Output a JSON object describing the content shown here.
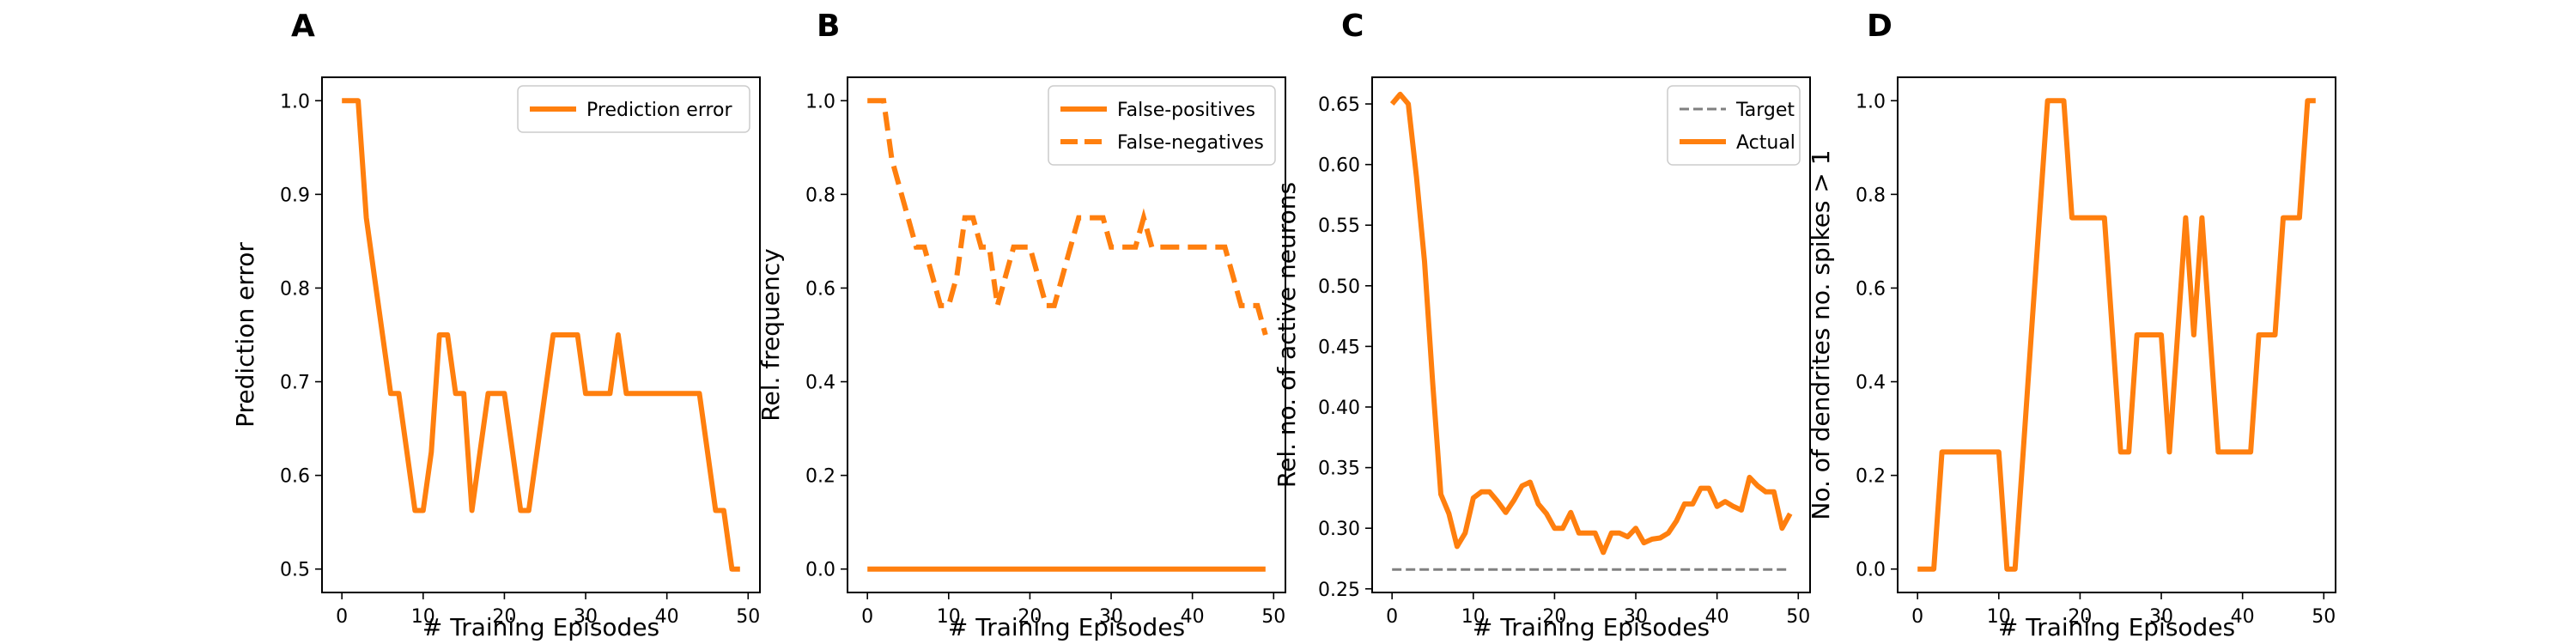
{
  "chart_data": [
    {
      "panel_label": "A",
      "type": "line",
      "xlabel": "# Training Episodes",
      "ylabel": "Prediction error",
      "xlim": [
        -2.45,
        51.45
      ],
      "ylim": [
        0.475,
        1.025
      ],
      "xticks": [
        0,
        10,
        20,
        30,
        40,
        50
      ],
      "xtick_labels": [
        "0",
        "10",
        "20",
        "30",
        "40",
        "50"
      ],
      "yticks": [
        0.5,
        0.6,
        0.7,
        0.8,
        0.9,
        1.0
      ],
      "ytick_labels": [
        "0.5",
        "0.6",
        "0.7",
        "0.8",
        "0.9",
        "1.0"
      ],
      "legend": "top-right",
      "series": [
        {
          "name": "Prediction error",
          "style": "solid",
          "color": "#ff7f0e",
          "x": [
            0,
            1,
            2,
            3,
            4,
            5,
            6,
            7,
            8,
            9,
            10,
            11,
            12,
            13,
            14,
            15,
            16,
            17,
            18,
            19,
            20,
            21,
            22,
            23,
            24,
            25,
            26,
            27,
            28,
            29,
            30,
            31,
            32,
            33,
            34,
            35,
            36,
            37,
            38,
            39,
            40,
            41,
            42,
            43,
            44,
            45,
            46,
            47,
            48,
            49
          ],
          "y": [
            1.0,
            1.0,
            1.0,
            0.875,
            0.8125,
            0.75,
            0.6875,
            0.6875,
            0.625,
            0.5625,
            0.5625,
            0.625,
            0.75,
            0.75,
            0.6875,
            0.6875,
            0.5625,
            0.625,
            0.6875,
            0.6875,
            0.6875,
            0.625,
            0.5625,
            0.5625,
            0.625,
            0.6875,
            0.75,
            0.75,
            0.75,
            0.75,
            0.6875,
            0.6875,
            0.6875,
            0.6875,
            0.75,
            0.6875,
            0.6875,
            0.6875,
            0.6875,
            0.6875,
            0.6875,
            0.6875,
            0.6875,
            0.6875,
            0.6875,
            0.625,
            0.5625,
            0.5625,
            0.5,
            0.5
          ]
        }
      ]
    },
    {
      "panel_label": "B",
      "type": "line",
      "xlabel": "# Training Episodes",
      "ylabel": "Rel. frequency",
      "xlim": [
        -2.45,
        51.45
      ],
      "ylim": [
        -0.05,
        1.05
      ],
      "xticks": [
        0,
        10,
        20,
        30,
        40,
        50
      ],
      "xtick_labels": [
        "0",
        "10",
        "20",
        "30",
        "40",
        "50"
      ],
      "yticks": [
        0.0,
        0.2,
        0.4,
        0.6,
        0.8,
        1.0
      ],
      "ytick_labels": [
        "0.0",
        "0.2",
        "0.4",
        "0.6",
        "0.8",
        "1.0"
      ],
      "legend": "top-right",
      "series": [
        {
          "name": "False-positives",
          "style": "solid",
          "color": "#ff7f0e",
          "x": [
            0,
            49
          ],
          "y": [
            0.0,
            0.0
          ]
        },
        {
          "name": "False-negatives",
          "style": "dashed",
          "color": "#ff7f0e",
          "x": [
            0,
            1,
            2,
            3,
            4,
            5,
            6,
            7,
            8,
            9,
            10,
            11,
            12,
            13,
            14,
            15,
            16,
            17,
            18,
            19,
            20,
            21,
            22,
            23,
            24,
            25,
            26,
            27,
            28,
            29,
            30,
            31,
            32,
            33,
            34,
            35,
            36,
            37,
            38,
            39,
            40,
            41,
            42,
            43,
            44,
            45,
            46,
            47,
            48,
            49
          ],
          "y": [
            1.0,
            1.0,
            1.0,
            0.875,
            0.8125,
            0.75,
            0.6875,
            0.6875,
            0.625,
            0.5625,
            0.5625,
            0.625,
            0.75,
            0.75,
            0.6875,
            0.6875,
            0.5625,
            0.625,
            0.6875,
            0.6875,
            0.6875,
            0.625,
            0.5625,
            0.5625,
            0.625,
            0.6875,
            0.75,
            0.75,
            0.75,
            0.75,
            0.6875,
            0.6875,
            0.6875,
            0.6875,
            0.75,
            0.6875,
            0.6875,
            0.6875,
            0.6875,
            0.6875,
            0.6875,
            0.6875,
            0.6875,
            0.6875,
            0.6875,
            0.625,
            0.5625,
            0.5625,
            0.5625,
            0.5
          ]
        }
      ]
    },
    {
      "panel_label": "C",
      "type": "line",
      "xlabel": "# Training Episodes",
      "ylabel": "Rel. no. of active neurons",
      "xlim": [
        -2.45,
        51.45
      ],
      "ylim": [
        0.247,
        0.672
      ],
      "xticks": [
        0,
        10,
        20,
        30,
        40,
        50
      ],
      "xtick_labels": [
        "0",
        "10",
        "20",
        "30",
        "40",
        "50"
      ],
      "yticks": [
        0.25,
        0.3,
        0.35,
        0.4,
        0.45,
        0.5,
        0.55,
        0.6,
        0.65
      ],
      "ytick_labels": [
        "0.25",
        "0.30",
        "0.35",
        "0.40",
        "0.45",
        "0.50",
        "0.55",
        "0.60",
        "0.65"
      ],
      "legend": "top-right",
      "series": [
        {
          "name": "Target",
          "style": "dashed",
          "color": "#808080",
          "x": [
            0,
            49
          ],
          "y": [
            0.266,
            0.266
          ]
        },
        {
          "name": "Actual",
          "style": "solid",
          "color": "#ff7f0e",
          "x": [
            0,
            1,
            2,
            3,
            4,
            5,
            6,
            7,
            8,
            9,
            10,
            11,
            12,
            13,
            14,
            15,
            16,
            17,
            18,
            19,
            20,
            21,
            22,
            23,
            24,
            25,
            26,
            27,
            28,
            29,
            30,
            31,
            32,
            33,
            34,
            35,
            36,
            37,
            38,
            39,
            40,
            41,
            42,
            43,
            44,
            45,
            46,
            47,
            48,
            49
          ],
          "y": [
            0.65,
            0.658,
            0.65,
            0.59,
            0.52,
            0.42,
            0.328,
            0.312,
            0.285,
            0.296,
            0.325,
            0.33,
            0.33,
            0.322,
            0.313,
            0.323,
            0.335,
            0.338,
            0.32,
            0.312,
            0.3,
            0.3,
            0.313,
            0.296,
            0.296,
            0.296,
            0.28,
            0.296,
            0.296,
            0.293,
            0.3,
            0.288,
            0.291,
            0.292,
            0.296,
            0.306,
            0.32,
            0.32,
            0.333,
            0.333,
            0.318,
            0.322,
            0.318,
            0.315,
            0.342,
            0.335,
            0.33,
            0.33,
            0.3,
            0.312
          ]
        }
      ]
    },
    {
      "panel_label": "D",
      "type": "line",
      "xlabel": "# Training Episodes",
      "ylabel": "No. of dendrites no. spikes > 1",
      "xlim": [
        -2.45,
        51.45
      ],
      "ylim": [
        -0.05,
        1.05
      ],
      "xticks": [
        0,
        10,
        20,
        30,
        40,
        50
      ],
      "xtick_labels": [
        "0",
        "10",
        "20",
        "30",
        "40",
        "50"
      ],
      "yticks": [
        0.0,
        0.2,
        0.4,
        0.6,
        0.8,
        1.0
      ],
      "ytick_labels": [
        "0.0",
        "0.2",
        "0.4",
        "0.6",
        "0.8",
        "1.0"
      ],
      "legend": "",
      "series": [
        {
          "name": "",
          "style": "solid",
          "color": "#ff7f0e",
          "x": [
            0,
            1,
            2,
            3,
            4,
            5,
            6,
            7,
            8,
            9,
            10,
            11,
            12,
            13,
            14,
            15,
            16,
            17,
            18,
            19,
            20,
            21,
            22,
            23,
            24,
            25,
            26,
            27,
            28,
            29,
            30,
            31,
            32,
            33,
            34,
            35,
            36,
            37,
            38,
            39,
            40,
            41,
            42,
            43,
            44,
            45,
            46,
            47,
            48,
            49
          ],
          "y": [
            0.0,
            0.0,
            0.0,
            0.25,
            0.25,
            0.25,
            0.25,
            0.25,
            0.25,
            0.25,
            0.25,
            0.0,
            0.0,
            0.25,
            0.5,
            0.75,
            1.0,
            1.0,
            1.0,
            0.75,
            0.75,
            0.75,
            0.75,
            0.75,
            0.5,
            0.25,
            0.25,
            0.5,
            0.5,
            0.5,
            0.5,
            0.25,
            0.5,
            0.75,
            0.5,
            0.75,
            0.5,
            0.25,
            0.25,
            0.25,
            0.25,
            0.25,
            0.5,
            0.5,
            0.5,
            0.75,
            0.75,
            0.75,
            1.0,
            1.0
          ]
        }
      ]
    }
  ]
}
